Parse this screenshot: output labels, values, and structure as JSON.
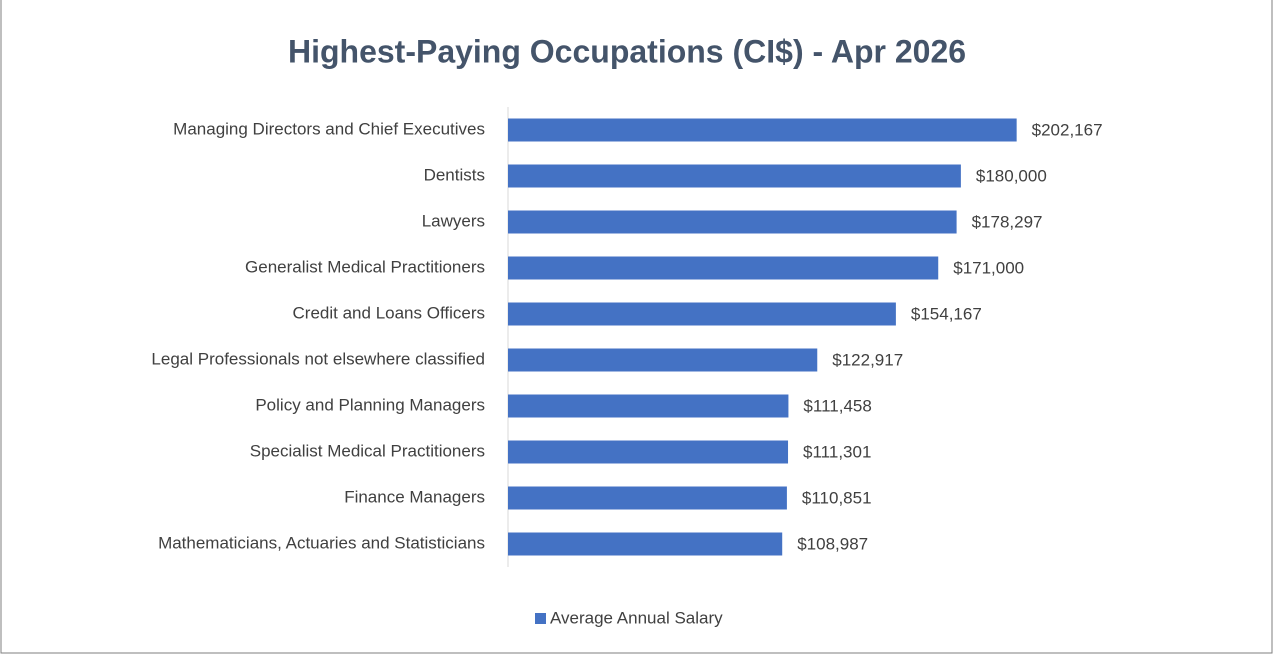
{
  "chart_data": {
    "type": "barh",
    "title": "Highest-Paying Occupations (CI$) - Apr 2026",
    "categories": [
      "Managing Directors and Chief Executives",
      "Dentists",
      "Lawyers",
      "Generalist Medical Practitioners",
      "Credit and Loans Officers",
      "Legal Professionals not elsewhere classified",
      "Policy and Planning Managers",
      "Specialist Medical Practitioners",
      "Finance Managers",
      "Mathematicians, Actuaries and Statisticians"
    ],
    "series": [
      {
        "name": "Average Annual Salary",
        "color": "#4472c4",
        "values": [
          202167,
          180000,
          178297,
          171000,
          154167,
          122917,
          111458,
          111301,
          110851,
          108987
        ],
        "value_labels": [
          "$202,167",
          "$180,000",
          "$178,297",
          "$171,000",
          "$154,167",
          "$122,917",
          "$111,458",
          "$111,301",
          "$110,851",
          "$108,987"
        ]
      }
    ],
    "xlim": [
      0,
      250000
    ],
    "legend": "bottom"
  }
}
